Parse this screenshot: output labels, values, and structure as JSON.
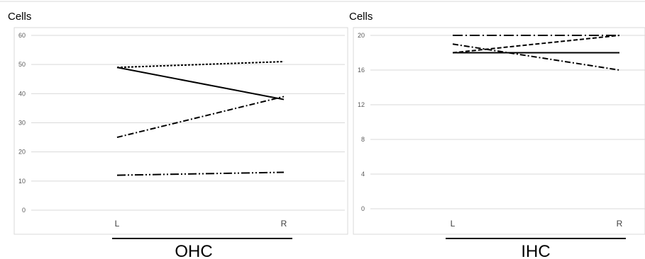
{
  "chart_data": [
    {
      "type": "line",
      "ylabel": "Cells",
      "group_label": "OHC",
      "categories": [
        "L",
        "R"
      ],
      "ylim": [
        0,
        60
      ],
      "yticks": [
        0,
        10,
        20,
        30,
        40,
        50,
        60
      ],
      "grid": true,
      "legend": "none",
      "series": [
        {
          "dash": "solid",
          "values": [
            49,
            38
          ]
        },
        {
          "dash": "dotted",
          "values": [
            49,
            51
          ]
        },
        {
          "dash": "dashdot",
          "values": [
            25,
            39
          ]
        },
        {
          "dash": "dashdotdot",
          "values": [
            12,
            13
          ]
        }
      ]
    },
    {
      "type": "line",
      "ylabel": "Cells",
      "group_label": "IHC",
      "categories": [
        "L",
        "R"
      ],
      "ylim": [
        0,
        20
      ],
      "yticks": [
        0,
        4,
        8,
        12,
        16,
        20
      ],
      "grid": true,
      "legend": "none",
      "series": [
        {
          "dash": "solid",
          "values": [
            18,
            18
          ]
        },
        {
          "dash": "dashed",
          "values": [
            18,
            20
          ]
        },
        {
          "dash": "dashdot",
          "values": [
            19,
            16
          ]
        },
        {
          "dash": "longdashdot",
          "values": [
            20,
            20
          ]
        }
      ]
    }
  ]
}
